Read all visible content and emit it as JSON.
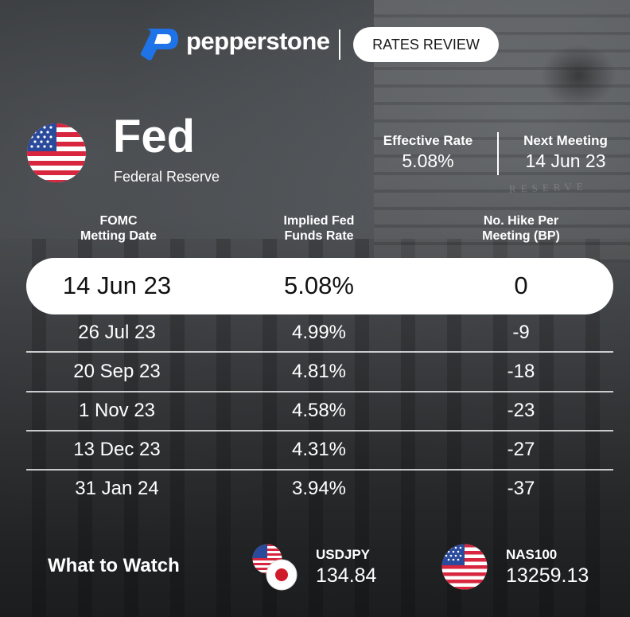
{
  "header": {
    "brand": "pepperstone",
    "badge": "RATES REVIEW"
  },
  "bank": {
    "name": "Fed",
    "full_name": "Federal Reserve"
  },
  "stats": {
    "effective_rate_label": "Effective Rate",
    "effective_rate_value": "5.08%",
    "next_meeting_label": "Next Meeting",
    "next_meeting_value": "14 Jun 23"
  },
  "table": {
    "headers": {
      "col1": [
        "FOMC",
        "Metting Date"
      ],
      "col2": [
        "Implied Fed",
        "Funds Rate"
      ],
      "col3": [
        "No. Hike Per",
        "Meeting (BP)"
      ]
    },
    "highlight": {
      "date": "14 Jun 23",
      "rate": "5.08%",
      "hike": "0"
    },
    "rows": [
      {
        "date": "26 Jul 23",
        "rate": "4.99%",
        "hike": "-9"
      },
      {
        "date": "20 Sep 23",
        "rate": "4.81%",
        "hike": "-18"
      },
      {
        "date": "1 Nov 23",
        "rate": "4.58%",
        "hike": "-23"
      },
      {
        "date": "13 Dec 23",
        "rate": "4.31%",
        "hike": "-27"
      },
      {
        "date": "31 Jan 24",
        "rate": "3.94%",
        "hike": "-37"
      }
    ]
  },
  "footer": {
    "label": "What to Watch",
    "tickers": [
      {
        "symbol": "USDJPY",
        "value": "134.84",
        "flags": [
          "us-flag-icon",
          "japan-flag-icon"
        ]
      },
      {
        "symbol": "NAS100",
        "value": "13259.13",
        "flags": [
          "us-flag-icon"
        ]
      }
    ]
  },
  "colors": {
    "brand_blue": "#1e73e8",
    "flag_red": "#d7263d",
    "flag_blue": "#2a4a9b",
    "japan_red": "#d01c2a"
  },
  "background_engraving": "RESERVE"
}
